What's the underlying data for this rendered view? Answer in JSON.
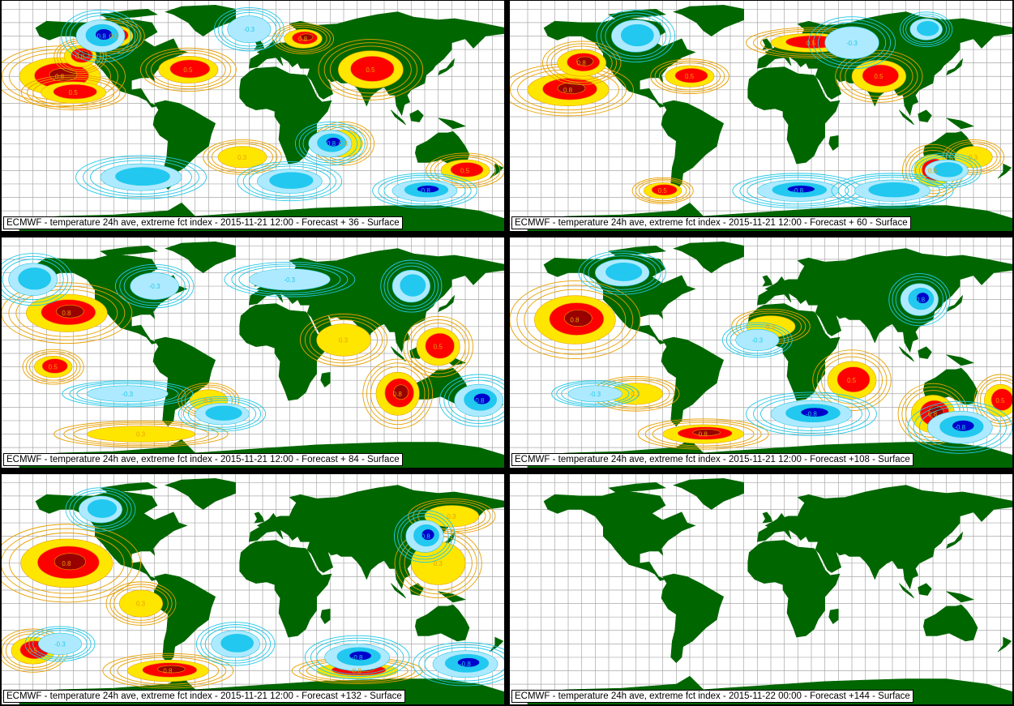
{
  "panels": [
    {
      "caption": "ECMWF - temperature 24h ave, extreme fct index - 2015-11-21 12:00 - Forecast + 36 - Surface",
      "variant": 0,
      "has_data": true
    },
    {
      "caption": "ECMWF - temperature 24h ave, extreme fct index - 2015-11-21 12:00 - Forecast + 60 - Surface",
      "variant": 1,
      "has_data": true
    },
    {
      "caption": "ECMWF - temperature 24h ave, extreme fct index - 2015-11-21 12:00 - Forecast + 84 - Surface",
      "variant": 2,
      "has_data": true
    },
    {
      "caption": "ECMWF - temperature 24h ave, extreme fct index - 2015-11-21 12:00 - Forecast +108 - Surface",
      "variant": 3,
      "has_data": true
    },
    {
      "caption": "ECMWF - temperature 24h ave, extreme fct index - 2015-11-21 12:00 - Forecast +132 - Surface",
      "variant": 4,
      "has_data": true
    },
    {
      "caption": "ECMWF - temperature 24h ave, extreme fct index - 2015-11-22 00:00 - Forecast +144 - Surface",
      "variant": 5,
      "has_data": false
    }
  ],
  "contour_labels": [
    "0.8",
    "0.5",
    "0.3",
    "-0.3",
    "-0.5",
    "-0.8"
  ],
  "colors": {
    "land": "#006600",
    "grid": "#a8a8a8",
    "warm_light": "#ffe600",
    "warm_mid": "#ff0000",
    "warm_dark": "#990000",
    "warm_line": "#e8a000",
    "cold_light": "#aeeaff",
    "cold_mid": "#22c8f0",
    "cold_dark": "#0000cc",
    "cold_line": "#22c8e8"
  }
}
